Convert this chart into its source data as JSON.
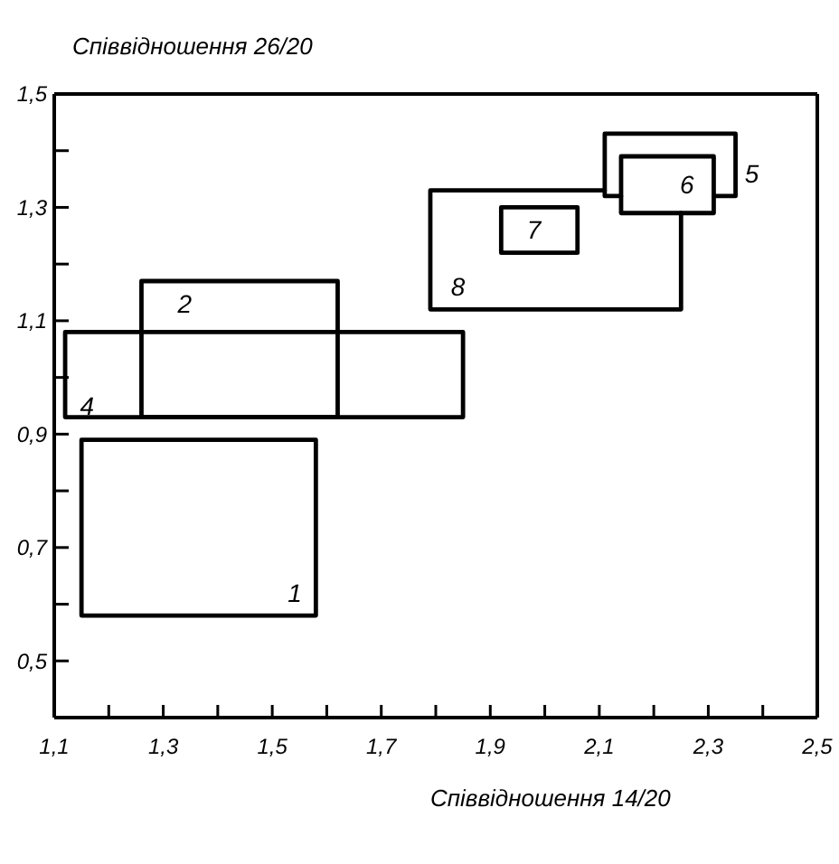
{
  "chart_data": {
    "type": "line",
    "xlabel": "Співвідношення 14/20",
    "ylabel": "Співвідношення 26/20",
    "xlim": [
      1.1,
      2.5
    ],
    "ylim": [
      0.4,
      1.5
    ],
    "xticks": [
      {
        "value": 1.1,
        "label": "1,1"
      },
      {
        "value": 1.2,
        "label": null
      },
      {
        "value": 1.3,
        "label": "1,3"
      },
      {
        "value": 1.4,
        "label": null
      },
      {
        "value": 1.5,
        "label": "1,5"
      },
      {
        "value": 1.6,
        "label": null
      },
      {
        "value": 1.7,
        "label": "1,7"
      },
      {
        "value": 1.8,
        "label": null
      },
      {
        "value": 1.9,
        "label": "1,9"
      },
      {
        "value": 2.0,
        "label": null
      },
      {
        "value": 2.1,
        "label": "2,1"
      },
      {
        "value": 2.2,
        "label": null
      },
      {
        "value": 2.3,
        "label": "2,3"
      },
      {
        "value": 2.4,
        "label": null
      },
      {
        "value": 2.5,
        "label": "2,5"
      }
    ],
    "yticks": [
      {
        "value": 0.5,
        "label": "0,5"
      },
      {
        "value": 0.6,
        "label": null
      },
      {
        "value": 0.7,
        "label": "0,7"
      },
      {
        "value": 0.8,
        "label": null
      },
      {
        "value": 0.9,
        "label": "0,9"
      },
      {
        "value": 1.0,
        "label": null
      },
      {
        "value": 1.1,
        "label": "1,1"
      },
      {
        "value": 1.2,
        "label": null
      },
      {
        "value": 1.3,
        "label": "1,3"
      },
      {
        "value": 1.4,
        "label": null
      },
      {
        "value": 1.5,
        "label": "1,5"
      }
    ],
    "series": [
      {
        "name": "1",
        "color": "#000000",
        "x": [
          1.15,
          1.58,
          1.58,
          1.15,
          1.15
        ],
        "values": [
          0.58,
          0.58,
          0.89,
          0.89,
          0.58
        ]
      },
      {
        "name": "2",
        "color": "#000000",
        "x": [
          1.26,
          1.62,
          1.62,
          1.26,
          1.26
        ],
        "values": [
          0.93,
          0.93,
          1.17,
          1.17,
          0.93
        ]
      },
      {
        "name": "4",
        "color": "#000000",
        "x": [
          1.12,
          1.85,
          1.85,
          1.12,
          1.12
        ],
        "values": [
          0.93,
          0.93,
          1.08,
          1.08,
          0.93
        ]
      },
      {
        "name": "5",
        "color": "#000000",
        "x": [
          2.14,
          2.11,
          2.11,
          2.35,
          2.35,
          2.31
        ],
        "values": [
          1.32,
          1.32,
          1.43,
          1.43,
          1.32,
          1.32
        ]
      },
      {
        "name": "6",
        "color": "#000000",
        "x": [
          2.14,
          2.31,
          2.31,
          2.14,
          2.14
        ],
        "values": [
          1.29,
          1.29,
          1.39,
          1.39,
          1.29
        ]
      },
      {
        "name": "7",
        "color": "#000000",
        "x": [
          1.92,
          2.06,
          2.06,
          1.92,
          1.92
        ],
        "values": [
          1.22,
          1.22,
          1.3,
          1.3,
          1.22
        ]
      },
      {
        "name": "8",
        "color": "#000000",
        "x": [
          2.11,
          1.79,
          1.79,
          2.25,
          2.25
        ],
        "values": [
          1.33,
          1.33,
          1.12,
          1.12,
          1.29
        ]
      }
    ]
  }
}
